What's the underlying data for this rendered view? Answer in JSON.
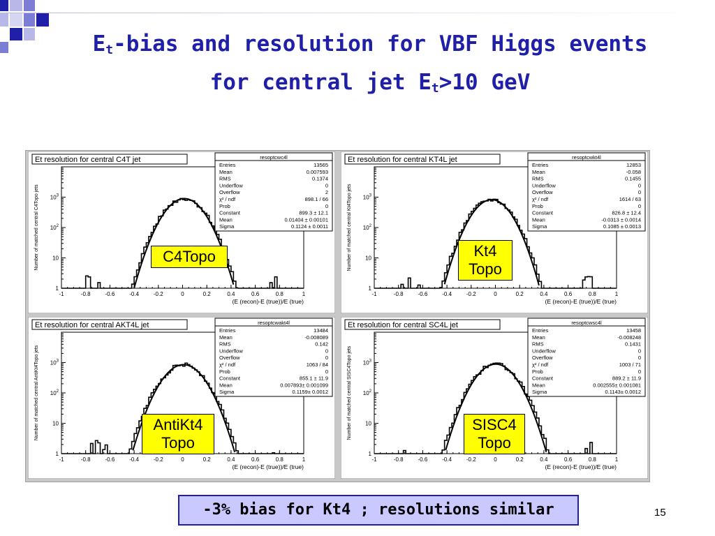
{
  "slide": {
    "title_line1_pre": "E",
    "title_sub": "t",
    "title_line1_post": "-bias and resolution for VBF Higgs events",
    "title_line2_pre": "for central jet E",
    "title_line2_sub": "t",
    "title_line2_post": ">10 GeV",
    "note": "-3% bias for Kt4 ; resolutions similar",
    "page_number": "15",
    "accent_color": "#1f1fa8",
    "note_bg": "#c9c9ff",
    "tag_bg": "#ffff00"
  },
  "chart_data": [
    {
      "type": "histogram",
      "title": "Et resolution for central C4T jet",
      "ylabel": "Number of matched central C4Topo jets",
      "xlabel": "(E (recon)-E (true))/E (true)",
      "xlim": [
        -1,
        1
      ],
      "ylim_log": [
        1,
        10000
      ],
      "log_y": true,
      "x_ticks": [
        "-1",
        "-0.8",
        "-0.6",
        "-0.4",
        "-0.2",
        "0",
        "0.2",
        "0.4",
        "0.6",
        "0.8",
        "1"
      ],
      "y_ticks": [
        "1",
        "10",
        "10^2",
        "10^3"
      ],
      "tag": [
        "C4Topo"
      ],
      "stats_title": "resoptcwc4l",
      "stats": [
        [
          "Entries",
          "13565"
        ],
        [
          "Mean",
          "0.007593"
        ],
        [
          "RMS",
          "0.1374"
        ],
        [
          "Underflow",
          "0"
        ],
        [
          "Overflow",
          "2"
        ],
        [
          "χ² / ndf",
          "898.1 / 66"
        ],
        [
          "Prob",
          "0"
        ],
        [
          "Constant",
          "899.3 ± 12.1"
        ],
        [
          "Mean",
          "0.01404 ± 0.00101"
        ],
        [
          "Sigma",
          "0.1124 ± 0.0011"
        ]
      ],
      "fit": {
        "constant": 899.3,
        "mean": 0.01404,
        "sigma": 0.1124
      }
    },
    {
      "type": "histogram",
      "title": "Et resolution for central KT4L jet",
      "ylabel": "Number of matched central Kt4Topo jets",
      "xlabel": "(E (recon)-E (true))/E (true)",
      "xlim": [
        -1,
        1
      ],
      "ylim_log": [
        1,
        10000
      ],
      "log_y": true,
      "x_ticks": [
        "-1",
        "-0.8",
        "-0.6",
        "-0.4",
        "-0.2",
        "0",
        "0.2",
        "0.4",
        "0.6",
        "0.8",
        "1"
      ],
      "y_ticks": [
        "1",
        "10",
        "10^2",
        "10^3"
      ],
      "tag": [
        "Kt4",
        "Topo"
      ],
      "stats_title": "resoptcwkt4l",
      "stats": [
        [
          "Entries",
          "12853"
        ],
        [
          "Mean",
          "-0.058"
        ],
        [
          "RMS",
          "0.1455"
        ],
        [
          "Underflow",
          "0"
        ],
        [
          "Overflow",
          "0"
        ],
        [
          "χ² / ndf",
          "1614 / 63"
        ],
        [
          "Prob",
          "0"
        ],
        [
          "Constant",
          "826.8 ± 12.4"
        ],
        [
          "Mean",
          "-0.0313 ± 0.0014"
        ],
        [
          "Sigma",
          "0.1085 ± 0.0013"
        ]
      ],
      "fit": {
        "constant": 826.8,
        "mean": -0.0313,
        "sigma": 0.1085
      }
    },
    {
      "type": "histogram",
      "title": "Et resolution for central AKT4L jet",
      "ylabel": "Number of matched central AntiKt4Topo jets",
      "xlabel": "(E (recon)-E (true))/E (true)",
      "xlim": [
        -1,
        1
      ],
      "ylim_log": [
        1,
        10000
      ],
      "log_y": true,
      "x_ticks": [
        "-1",
        "-0.8",
        "-0.6",
        "-0.4",
        "-0.2",
        "0",
        "0.2",
        "0.4",
        "0.6",
        "0.8",
        "1"
      ],
      "y_ticks": [
        "1",
        "10",
        "10^2",
        "10^3"
      ],
      "tag": [
        "AntiKt4",
        "Topo"
      ],
      "stats_title": "resoptcwakt4l",
      "stats": [
        [
          "Entries",
          "13484"
        ],
        [
          "Mean",
          "-0.008089"
        ],
        [
          "RMS",
          "0.142"
        ],
        [
          "Underflow",
          "0"
        ],
        [
          "Overflow",
          "0"
        ],
        [
          "χ² / ndf",
          "1063 / 84"
        ],
        [
          "Prob",
          "0"
        ],
        [
          "Constant",
          "855.1 ± 11.9"
        ],
        [
          "Mean",
          "0.007893± 0.001099"
        ],
        [
          "Sigma",
          "0.1159± 0.0012"
        ]
      ],
      "fit": {
        "constant": 855.1,
        "mean": 0.007893,
        "sigma": 0.1159
      }
    },
    {
      "type": "histogram",
      "title": "Et resolution for central SC4L jet",
      "ylabel": "Number of matched central SISC4Topo jets",
      "xlabel": "(E (recon)-E (true))/E (true)",
      "xlim": [
        -1,
        1
      ],
      "ylim_log": [
        1,
        10000
      ],
      "log_y": true,
      "x_ticks": [
        "-1",
        "-0.8",
        "-0.6",
        "-0.4",
        "-0.2",
        "0",
        "0.2",
        "0.4",
        "0.6",
        "0.8",
        "1"
      ],
      "y_ticks": [
        "1",
        "10",
        "10^2",
        "10^3"
      ],
      "tag": [
        "SISC4",
        "Topo"
      ],
      "stats_title": "resoptcwsc4l",
      "stats": [
        [
          "Entries",
          "13458"
        ],
        [
          "Mean",
          "-0.008248"
        ],
        [
          "RMS",
          "0.1431"
        ],
        [
          "Underflow",
          "0"
        ],
        [
          "Overflow",
          "0"
        ],
        [
          "χ² / ndf",
          "1003 / 71"
        ],
        [
          "Prob",
          "0"
        ],
        [
          "Constant",
          "889.2 ± 11.9"
        ],
        [
          "Mean",
          "0.002555± 0.001081"
        ],
        [
          "Sigma",
          "0.1143± 0.0012"
        ]
      ],
      "fit": {
        "constant": 889.2,
        "mean": 0.002555,
        "sigma": 0.1143
      }
    }
  ]
}
